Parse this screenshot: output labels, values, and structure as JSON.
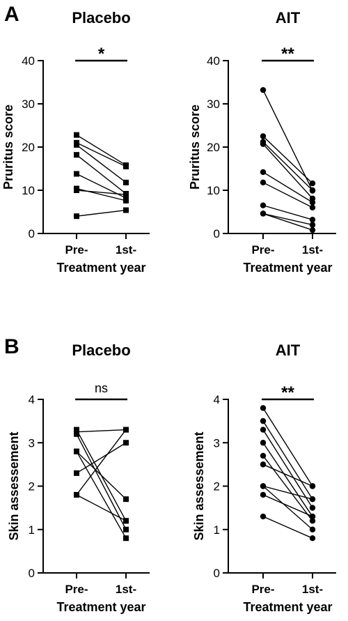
{
  "panel_labels": [
    "A",
    "B"
  ],
  "chart_data": [
    {
      "type": "scatter",
      "panel": "A",
      "title": "Placebo",
      "xlabel": "Treatment year",
      "ylabel": "Pruritus score",
      "categories": [
        "Pre-",
        "1st-"
      ],
      "ylim": [
        0,
        40
      ],
      "yticks": [
        0,
        10,
        20,
        30,
        40
      ],
      "marker": "square",
      "significance": "*",
      "pairs": [
        [
          22.8,
          15.8
        ],
        [
          21.0,
          15.5
        ],
        [
          20.5,
          11.8
        ],
        [
          18.2,
          9.2
        ],
        [
          13.8,
          8.2
        ],
        [
          10.4,
          7.6
        ],
        [
          10.0,
          9.0
        ],
        [
          4.0,
          5.4
        ]
      ]
    },
    {
      "type": "scatter",
      "panel": "A",
      "title": "AIT",
      "xlabel": "Treatment year",
      "ylabel": "Pruritus score",
      "categories": [
        "Pre-",
        "1st-"
      ],
      "ylim": [
        0,
        40
      ],
      "yticks": [
        0,
        10,
        20,
        30,
        40
      ],
      "marker": "circle",
      "significance": "**",
      "pairs": [
        [
          33.2,
          9.9
        ],
        [
          22.5,
          11.6
        ],
        [
          21.2,
          10.0
        ],
        [
          20.7,
          8.1
        ],
        [
          14.2,
          7.2
        ],
        [
          11.8,
          6.0
        ],
        [
          6.5,
          3.2
        ],
        [
          4.6,
          2.0
        ],
        [
          4.6,
          0.8
        ]
      ]
    },
    {
      "type": "scatter",
      "panel": "B",
      "title": "Placebo",
      "xlabel": "Treatment year",
      "ylabel": "Skin assessement",
      "categories": [
        "Pre-",
        "1st-"
      ],
      "ylim": [
        0,
        4
      ],
      "yticks": [
        0,
        1,
        2,
        3,
        4
      ],
      "marker": "square",
      "significance": "ns",
      "pairs": [
        [
          3.3,
          1.2
        ],
        [
          3.25,
          3.3
        ],
        [
          3.2,
          1.0
        ],
        [
          2.8,
          1.7
        ],
        [
          2.8,
          0.8
        ],
        [
          2.3,
          3.0
        ],
        [
          1.8,
          3.3
        ],
        [
          1.8,
          1.2
        ]
      ]
    },
    {
      "type": "scatter",
      "panel": "B",
      "title": "AIT",
      "xlabel": "Treatment year",
      "ylabel": "Skin assessement",
      "categories": [
        "Pre-",
        "1st-"
      ],
      "ylim": [
        0,
        4
      ],
      "yticks": [
        0,
        1,
        2,
        3,
        4
      ],
      "marker": "circle",
      "significance": "**",
      "pairs": [
        [
          3.8,
          2.0
        ],
        [
          3.5,
          1.7
        ],
        [
          3.3,
          1.5
        ],
        [
          3.0,
          1.3
        ],
        [
          2.7,
          1.2
        ],
        [
          2.5,
          2.0
        ],
        [
          2.0,
          1.0
        ],
        [
          2.0,
          1.7
        ],
        [
          1.8,
          1.3
        ],
        [
          1.3,
          0.8
        ]
      ]
    }
  ]
}
